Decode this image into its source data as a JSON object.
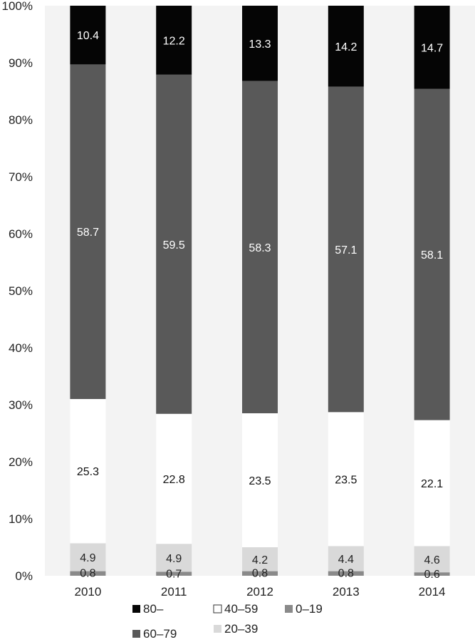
{
  "chart_data": {
    "type": "bar",
    "stacked": true,
    "categories": [
      "2010",
      "2011",
      "2012",
      "2013",
      "2014"
    ],
    "ylim": [
      0,
      100
    ],
    "y_ticks": [
      "0%",
      "10%",
      "20%",
      "30%",
      "40%",
      "50%",
      "60%",
      "70%",
      "80%",
      "90%",
      "100%"
    ],
    "grid": false,
    "legend_position": "bottom",
    "series": [
      {
        "name": "0–19",
        "color": "#8a8a8a",
        "label_color": "#222222",
        "values": [
          0.8,
          0.7,
          0.8,
          0.8,
          0.6
        ],
        "labels": [
          "0.8",
          "0.7",
          "0.8",
          "0.8",
          "0.6"
        ]
      },
      {
        "name": "20–39",
        "color": "#d9d9d9",
        "label_color": "#222222",
        "values": [
          4.9,
          4.9,
          4.2,
          4.4,
          4.6
        ],
        "labels": [
          "4.9",
          "4.9",
          "4.2",
          "4.4",
          "4.6"
        ]
      },
      {
        "name": "40–59",
        "color": "#ffffff",
        "label_color": "#111111",
        "values": [
          25.3,
          22.8,
          23.5,
          23.5,
          22.1
        ],
        "labels": [
          "25.3",
          "22.8",
          "23.5",
          "23.5",
          "22.1"
        ]
      },
      {
        "name": "60–79",
        "color": "#595959",
        "label_color": "#ffffff",
        "values": [
          58.7,
          59.5,
          58.3,
          57.1,
          58.1
        ],
        "labels": [
          "58.7",
          "59.5",
          "58.3",
          "57.1",
          "58.1"
        ]
      },
      {
        "name": "80–",
        "color": "#050505",
        "label_color": "#ffffff",
        "values": [
          10.4,
          12.2,
          13.3,
          14.2,
          14.7
        ],
        "labels": [
          "10.4",
          "12.2",
          "13.3",
          "14.2",
          "14.7"
        ]
      }
    ],
    "legend_order": [
      "80–",
      "40–59",
      "0–19",
      "60–79",
      "20–39"
    ],
    "plot_background": "#f3f3f3"
  }
}
